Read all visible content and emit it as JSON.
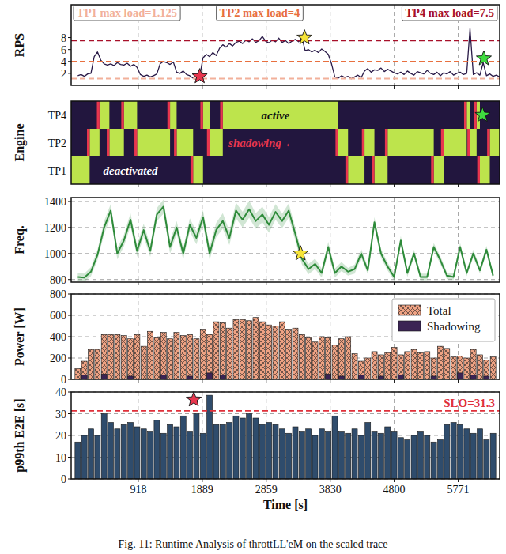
{
  "caption": "Fig. 11: Runtime Analysis of throttLL'eM on the scaled trace",
  "chart_data": [
    {
      "type": "line",
      "ylabel": "RPS",
      "x": [
        0,
        50,
        100,
        150,
        200,
        250,
        300,
        350,
        400,
        450,
        500,
        550,
        600,
        650,
        700,
        750,
        800,
        850,
        900,
        950,
        1000,
        1050,
        1100,
        1150,
        1200,
        1250,
        1300,
        1350,
        1400,
        1450,
        1500,
        1550,
        1600,
        1650,
        1700,
        1750,
        1800,
        1850,
        1900,
        1950,
        2000,
        2050,
        2100,
        2150,
        2200,
        2250,
        2300,
        2350,
        2400,
        2450,
        2500,
        2550,
        2600,
        2650,
        2700,
        2750,
        2800,
        2850,
        2900,
        2950,
        3000,
        3050,
        3100,
        3150,
        3200,
        3250,
        3300,
        3350,
        3400,
        3450,
        3500,
        3550,
        3600,
        3650,
        3700,
        3750,
        3800,
        3850,
        3900,
        3950,
        4000,
        4050,
        4100,
        4150,
        4200,
        4250,
        4300,
        4350,
        4400,
        4450,
        4500,
        4550,
        4600,
        4650,
        4700,
        4750,
        4800,
        4850,
        4900,
        4950,
        5000,
        5050,
        5100,
        5150,
        5200,
        5250,
        5300,
        5350,
        5400,
        5450,
        5500,
        5550,
        5600,
        5650,
        5700,
        5750,
        5800,
        5850,
        5900,
        5950,
        6000,
        6050,
        6100,
        6150,
        6200,
        6250,
        6300,
        6350,
        6400
      ],
      "values": [
        1.6,
        1.8,
        1.5,
        1.9,
        2.0,
        4.8,
        5.6,
        4.2,
        3.6,
        3.4,
        3.6,
        3.3,
        3.8,
        3.5,
        3.4,
        3.7,
        3.2,
        3.5,
        3.0,
        1.8,
        1.5,
        1.7,
        1.4,
        1.6,
        1.9,
        3.6,
        4.0,
        3.8,
        3.5,
        3.9,
        2.2,
        2.0,
        2.4,
        1.8,
        1.6,
        1.2,
        1.0,
        1.5,
        4.6,
        5.2,
        4.8,
        5.5,
        5.0,
        6.2,
        6.8,
        6.4,
        7.0,
        6.6,
        7.2,
        7.4,
        7.0,
        7.6,
        7.3,
        7.8,
        7.2,
        7.5,
        8.2,
        7.4,
        7.1,
        7.6,
        7.3,
        7.9,
        7.2,
        7.5,
        7.0,
        7.4,
        7.7,
        7.3,
        8.0,
        5.8,
        6.0,
        5.6,
        5.9,
        5.5,
        6.1,
        5.7,
        5.2,
        3.6,
        1.4,
        1.2,
        1.6,
        1.3,
        1.5,
        1.1,
        1.4,
        1.7,
        1.3,
        2.4,
        2.8,
        2.2,
        2.6,
        2.5,
        2.9,
        2.3,
        2.7,
        2.4,
        2.1,
        1.9,
        2.2,
        1.8,
        2.4,
        2.0,
        1.7,
        2.3,
        2.1,
        1.9,
        2.5,
        2.0,
        1.8,
        2.2,
        1.6,
        2.1,
        1.9,
        2.3,
        1.7,
        2.0,
        2.2,
        1.8,
        2.0,
        9.5,
        1.8,
        2.1,
        1.7,
        3.8,
        1.6,
        1.9,
        1.5,
        1.7,
        1.4
      ],
      "color": "#2a1b48",
      "xlim": [
        -100,
        6400
      ],
      "xticks": [
        918,
        1889,
        2859,
        3830,
        4800,
        5771
      ],
      "ylim": [
        0,
        13.5
      ],
      "yticks": [
        2,
        4,
        6,
        8
      ],
      "grid": "x",
      "tick_labels": "y",
      "thresholds": [
        {
          "value": 1.125,
          "label": "TP1 max load=1.125",
          "color": "#f2b09a"
        },
        {
          "value": 4,
          "label": "TP2 max load=4",
          "color": "#e8703f"
        },
        {
          "value": 7.5,
          "label": "TP4 max load=7.5",
          "color": "#a8102a"
        }
      ],
      "annotations": [
        {
          "x": 1850,
          "y": 1.5,
          "marker": "star",
          "color": "#e8364e"
        },
        {
          "x": 3440,
          "y": 8,
          "marker": "star",
          "color": "#f6e43a"
        },
        {
          "x": 6160,
          "y": 4.5,
          "marker": "star",
          "color": "#3fdc3f"
        }
      ]
    },
    {
      "type": "timeline",
      "ylabel": "Engine",
      "categories": [
        "TP1",
        "TP2",
        "TP4"
      ],
      "xlim": [
        -100,
        6400
      ],
      "xticks": [
        918,
        1889,
        2859,
        3830,
        4800,
        5771
      ],
      "tick_labels": "y",
      "segments": [
        {
          "start": -100,
          "end": 180,
          "engine": "TP1"
        },
        {
          "start": 180,
          "end": 330,
          "engine": "TP2"
        },
        {
          "start": 330,
          "end": 480,
          "engine": "TP4"
        },
        {
          "start": 480,
          "end": 700,
          "engine": "TP2"
        },
        {
          "start": 700,
          "end": 900,
          "engine": "TP4"
        },
        {
          "start": 900,
          "end": 1400,
          "engine": "TP2"
        },
        {
          "start": 1400,
          "end": 1500,
          "engine": "TP4"
        },
        {
          "start": 1500,
          "end": 1750,
          "engine": "TP2"
        },
        {
          "start": 1750,
          "end": 1900,
          "engine": "TP1"
        },
        {
          "start": 1900,
          "end": 2000,
          "engine": "TP4"
        },
        {
          "start": 2000,
          "end": 2200,
          "engine": "TP2"
        },
        {
          "start": 2200,
          "end": 3950,
          "engine": "TP4"
        },
        {
          "start": 3950,
          "end": 4100,
          "engine": "TP2"
        },
        {
          "start": 4100,
          "end": 4350,
          "engine": "TP1"
        },
        {
          "start": 4350,
          "end": 4500,
          "engine": "TP2"
        },
        {
          "start": 4500,
          "end": 4700,
          "engine": "TP1"
        },
        {
          "start": 4700,
          "end": 5400,
          "engine": "TP2"
        },
        {
          "start": 5400,
          "end": 5550,
          "engine": "TP1"
        },
        {
          "start": 5550,
          "end": 5900,
          "engine": "TP2"
        },
        {
          "start": 5900,
          "end": 5950,
          "engine": "TP4"
        },
        {
          "start": 5950,
          "end": 6050,
          "engine": "TP2"
        },
        {
          "start": 6050,
          "end": 6100,
          "engine": "TP4"
        },
        {
          "start": 6100,
          "end": 6250,
          "engine": "TP1"
        },
        {
          "start": 6250,
          "end": 6400,
          "engine": "TP2"
        }
      ],
      "shadowing": [
        {
          "start": 140,
          "end": 180,
          "engine": "TP2"
        },
        {
          "start": 290,
          "end": 330,
          "engine": "TP4"
        },
        {
          "start": 440,
          "end": 480,
          "engine": "TP2"
        },
        {
          "start": 660,
          "end": 700,
          "engine": "TP4"
        },
        {
          "start": 860,
          "end": 900,
          "engine": "TP2"
        },
        {
          "start": 1360,
          "end": 1400,
          "engine": "TP4"
        },
        {
          "start": 1460,
          "end": 1500,
          "engine": "TP2"
        },
        {
          "start": 1710,
          "end": 1750,
          "engine": "TP1"
        },
        {
          "start": 1860,
          "end": 1900,
          "engine": "TP4"
        },
        {
          "start": 1960,
          "end": 2000,
          "engine": "TP2"
        },
        {
          "start": 2160,
          "end": 2200,
          "engine": "TP4"
        },
        {
          "start": 3910,
          "end": 3950,
          "engine": "TP2"
        },
        {
          "start": 4060,
          "end": 4100,
          "engine": "TP1"
        },
        {
          "start": 4310,
          "end": 4350,
          "engine": "TP2"
        },
        {
          "start": 4460,
          "end": 4500,
          "engine": "TP1"
        },
        {
          "start": 4660,
          "end": 4700,
          "engine": "TP2"
        },
        {
          "start": 5360,
          "end": 5400,
          "engine": "TP1"
        },
        {
          "start": 5510,
          "end": 5550,
          "engine": "TP2"
        },
        {
          "start": 5860,
          "end": 5900,
          "engine": "TP4"
        },
        {
          "start": 5910,
          "end": 5950,
          "engine": "TP2"
        },
        {
          "start": 6010,
          "end": 6050,
          "engine": "TP4"
        },
        {
          "start": 6060,
          "end": 6100,
          "engine": "TP1"
        },
        {
          "start": 6210,
          "end": 6250,
          "engine": "TP2"
        }
      ],
      "labels": [
        {
          "text": "active",
          "engine": "TP4",
          "x": 3000,
          "color": "#111111"
        },
        {
          "text": "shadowing ←",
          "engine": "TP2",
          "x": 2800,
          "color": "#e8364e"
        },
        {
          "text": "deactivated",
          "engine": "TP1",
          "x": 800,
          "color": "#ffffff"
        }
      ],
      "annotations": [
        {
          "x": 6140,
          "engine": "TP4",
          "marker": "star",
          "color": "#3fdc3f"
        }
      ]
    },
    {
      "type": "line",
      "ylabel": "Freq.",
      "x": [
        0,
        100,
        200,
        300,
        400,
        500,
        600,
        700,
        800,
        900,
        1000,
        1100,
        1200,
        1300,
        1400,
        1500,
        1600,
        1700,
        1800,
        1900,
        2000,
        2100,
        2200,
        2300,
        2400,
        2500,
        2600,
        2700,
        2800,
        2900,
        3000,
        3100,
        3200,
        3300,
        3400,
        3500,
        3600,
        3700,
        3800,
        3900,
        4000,
        4100,
        4200,
        4300,
        4400,
        4500,
        4600,
        4700,
        4800,
        4900,
        5000,
        5100,
        5200,
        5300,
        5400,
        5500,
        5600,
        5700,
        5800,
        5900,
        6000,
        6100,
        6200,
        6300
      ],
      "values": [
        820,
        815,
        860,
        990,
        1200,
        1330,
        1000,
        1100,
        1260,
        1020,
        1180,
        1020,
        1300,
        1360,
        1050,
        1200,
        1000,
        1220,
        1120,
        1280,
        1000,
        1180,
        1250,
        1120,
        1330,
        1260,
        1340,
        1250,
        1300,
        1220,
        1320,
        1250,
        1330,
        1150,
        960,
        880,
        920,
        850,
        1050,
        850,
        900,
        860,
        880,
        1000,
        870,
        1240,
        1000,
        900,
        820,
        1100,
        850,
        1000,
        820,
        820,
        1050,
        950,
        830,
        820,
        1050,
        850,
        1000,
        870,
        1030,
        830
      ],
      "errors": [
        30,
        30,
        35,
        40,
        50,
        50,
        45,
        45,
        50,
        45,
        50,
        45,
        50,
        55,
        50,
        50,
        45,
        50,
        50,
        55,
        50,
        55,
        60,
        55,
        60,
        60,
        65,
        60,
        60,
        60,
        60,
        55,
        55,
        50,
        45,
        40,
        40,
        35,
        40,
        35,
        35,
        30,
        35,
        35,
        30,
        40,
        35,
        30,
        30,
        35,
        30,
        30,
        25,
        25,
        30,
        30,
        25,
        25,
        30,
        25,
        30,
        25,
        30,
        25
      ],
      "color": "#2e8b3a",
      "xlim": [
        -100,
        6400
      ],
      "xticks": [
        918,
        1889,
        2859,
        3830,
        4800,
        5771
      ],
      "ylim": [
        780,
        1430
      ],
      "yticks": [
        800,
        1000,
        1200,
        1400
      ],
      "grid": true,
      "tick_labels": "y",
      "annotations": [
        {
          "x": 3380,
          "y": 1000,
          "marker": "star",
          "color": "#f6e43a"
        }
      ]
    },
    {
      "type": "bar",
      "ylabel": "Power [W]",
      "x": [
        0,
        100,
        200,
        300,
        400,
        500,
        600,
        700,
        800,
        900,
        1000,
        1100,
        1200,
        1300,
        1400,
        1500,
        1600,
        1700,
        1800,
        1900,
        2000,
        2100,
        2200,
        2300,
        2400,
        2500,
        2600,
        2700,
        2800,
        2900,
        3000,
        3100,
        3200,
        3300,
        3400,
        3500,
        3600,
        3700,
        3800,
        3900,
        4000,
        4100,
        4200,
        4300,
        4400,
        4500,
        4600,
        4700,
        4800,
        4900,
        5000,
        5100,
        5200,
        5300,
        5400,
        5500,
        5600,
        5700,
        5800,
        5900,
        6000,
        6100,
        6200,
        6300
      ],
      "series": [
        {
          "name": "Total",
          "color": "#eea283",
          "values": [
            100,
            170,
            280,
            280,
            420,
            420,
            420,
            410,
            380,
            420,
            310,
            450,
            390,
            440,
            380,
            440,
            410,
            420,
            380,
            470,
            420,
            540,
            530,
            480,
            560,
            560,
            550,
            580,
            540,
            510,
            500,
            540,
            470,
            480,
            420,
            390,
            350,
            400,
            390,
            320,
            380,
            400,
            240,
            170,
            200,
            260,
            230,
            250,
            300,
            230,
            260,
            280,
            250,
            260,
            200,
            310,
            290,
            210,
            220,
            200,
            280,
            230,
            180,
            210
          ]
        },
        {
          "name": "Shadowing",
          "color": "#3b2454",
          "values": [
            0,
            40,
            0,
            0,
            50,
            0,
            0,
            0,
            30,
            0,
            0,
            0,
            0,
            40,
            0,
            0,
            0,
            30,
            0,
            0,
            60,
            0,
            40,
            0,
            0,
            0,
            0,
            0,
            0,
            0,
            0,
            0,
            0,
            0,
            0,
            0,
            0,
            0,
            50,
            0,
            30,
            0,
            0,
            40,
            0,
            0,
            30,
            0,
            0,
            40,
            0,
            0,
            0,
            0,
            30,
            0,
            0,
            0,
            60,
            0,
            40,
            0,
            30,
            0
          ]
        }
      ],
      "stacked": false,
      "xlim": [
        -100,
        6400
      ],
      "xticks": [
        918,
        1889,
        2859,
        3830,
        4800,
        5771
      ],
      "ylim": [
        0,
        800
      ],
      "yticks": [
        0,
        200,
        400,
        600,
        800
      ],
      "grid": true,
      "legend": "upper right",
      "tick_labels": "y"
    },
    {
      "type": "bar",
      "ylabel": "p99th E2E [s]",
      "xlabel": "Time [s]",
      "x": [
        0,
        100,
        200,
        300,
        400,
        500,
        600,
        700,
        800,
        900,
        1000,
        1100,
        1200,
        1300,
        1400,
        1500,
        1600,
        1700,
        1800,
        1900,
        2000,
        2100,
        2200,
        2300,
        2400,
        2500,
        2600,
        2700,
        2800,
        2900,
        3000,
        3100,
        3200,
        3300,
        3400,
        3500,
        3600,
        3700,
        3800,
        3900,
        4000,
        4100,
        4200,
        4300,
        4400,
        4500,
        4600,
        4700,
        4800,
        4900,
        5000,
        5100,
        5200,
        5300,
        5400,
        5500,
        5600,
        5700,
        5800,
        5900,
        6000,
        6100,
        6200,
        6300
      ],
      "values": [
        17,
        20,
        23,
        20,
        30,
        26,
        23,
        25,
        26,
        24,
        23,
        22,
        27,
        21,
        25,
        24,
        29,
        22,
        30,
        21,
        38.5,
        25,
        25,
        26,
        29,
        28,
        30,
        28,
        25,
        26,
        25,
        23,
        21,
        24,
        22,
        23,
        20,
        23,
        22,
        29,
        22,
        21,
        23,
        20,
        26,
        22,
        21,
        24,
        22,
        19,
        18,
        20,
        22,
        20,
        17,
        18,
        25,
        26,
        25,
        23,
        21,
        23,
        18,
        21
      ],
      "color": "#2f4c6c",
      "xlim": [
        -100,
        6400
      ],
      "xticks": [
        918,
        1889,
        2859,
        3830,
        4800,
        5771
      ],
      "ylim": [
        0,
        40
      ],
      "yticks": [
        0,
        10,
        20,
        30,
        40
      ],
      "grid": true,
      "thresholds": [
        {
          "value": 31.3,
          "label": "SLO=31.3",
          "color": "#e0303a"
        }
      ],
      "annotations": [
        {
          "x": 1760,
          "y": 36.5,
          "marker": "star",
          "color": "#e8364e"
        }
      ]
    }
  ]
}
